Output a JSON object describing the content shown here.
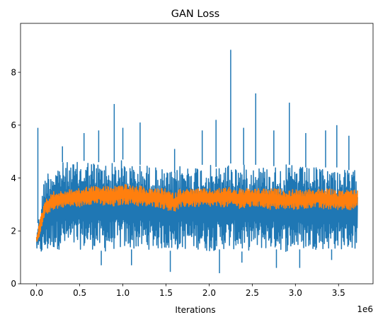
{
  "chart_data": {
    "type": "line",
    "title": "GAN Loss",
    "xlabel": "Iterations",
    "ylabel": "",
    "x_offset_label": "1e6",
    "xlim": [
      -0.186,
      3.9
    ],
    "ylim": [
      0,
      9.85
    ],
    "xticks": [
      0.0,
      0.5,
      1.0,
      1.5,
      2.0,
      2.5,
      3.0,
      3.5
    ],
    "xtick_labels": [
      "0.0",
      "0.5",
      "1.0",
      "1.5",
      "2.0",
      "2.5",
      "3.0",
      "3.5"
    ],
    "yticks": [
      0,
      2,
      4,
      6,
      8
    ],
    "ytick_labels": [
      "0",
      "2",
      "4",
      "6",
      "8"
    ],
    "grid": false,
    "legend": "none",
    "x_unit_multiplier": 1000000,
    "series": [
      {
        "color": "#1f77b4",
        "x": [
          0.0,
          0.015,
          0.03,
          0.05,
          0.07,
          0.1,
          0.15,
          0.2,
          0.3,
          0.4,
          0.5,
          0.6,
          0.7,
          0.8,
          0.9,
          1.0,
          1.1,
          1.2,
          1.3,
          1.4,
          1.5,
          1.6,
          1.65,
          1.7,
          1.8,
          1.9,
          2.0,
          2.1,
          2.2,
          2.3,
          2.4,
          2.5,
          2.6,
          2.7,
          2.8,
          2.9,
          3.0,
          3.1,
          3.2,
          3.3,
          3.4,
          3.5,
          3.6,
          3.72
        ],
        "upper": [
          1.9,
          2.3,
          2.6,
          3.0,
          3.6,
          4.2,
          4.4,
          4.5,
          4.6,
          4.6,
          4.6,
          4.7,
          4.6,
          4.6,
          4.6,
          4.7,
          4.5,
          4.5,
          4.5,
          4.4,
          4.3,
          4.2,
          4.5,
          4.5,
          4.5,
          4.5,
          4.5,
          4.4,
          4.6,
          4.5,
          4.5,
          4.5,
          4.5,
          4.4,
          4.5,
          4.5,
          4.5,
          4.4,
          4.4,
          4.4,
          4.4,
          4.4,
          4.3,
          4.3
        ],
        "lower": [
          1.3,
          1.2,
          1.2,
          1.1,
          1.1,
          1.1,
          1.2,
          1.3,
          1.3,
          1.3,
          1.3,
          1.3,
          1.3,
          1.2,
          1.3,
          1.3,
          1.3,
          1.3,
          1.3,
          1.3,
          1.3,
          1.2,
          1.3,
          1.3,
          1.3,
          1.3,
          1.2,
          1.3,
          1.3,
          1.3,
          1.2,
          1.3,
          1.3,
          1.3,
          1.3,
          1.2,
          1.3,
          1.3,
          1.3,
          1.3,
          1.3,
          1.3,
          1.3,
          1.3
        ],
        "spikes": [
          [
            0.015,
            5.9
          ],
          [
            0.3,
            5.2
          ],
          [
            0.55,
            5.7
          ],
          [
            0.72,
            5.8
          ],
          [
            0.9,
            6.8
          ],
          [
            1.0,
            5.9
          ],
          [
            1.2,
            6.1
          ],
          [
            1.6,
            5.1
          ],
          [
            1.92,
            5.8
          ],
          [
            2.08,
            6.2
          ],
          [
            2.25,
            8.85
          ],
          [
            2.4,
            5.9
          ],
          [
            2.54,
            7.2
          ],
          [
            2.75,
            5.8
          ],
          [
            2.93,
            6.85
          ],
          [
            3.12,
            5.7
          ],
          [
            3.35,
            5.8
          ],
          [
            3.48,
            6.0
          ],
          [
            3.62,
            5.6
          ],
          [
            0.75,
            0.7
          ],
          [
            1.1,
            0.7
          ],
          [
            1.55,
            0.45
          ],
          [
            2.12,
            0.4
          ],
          [
            2.38,
            0.8
          ],
          [
            2.78,
            0.6
          ],
          [
            3.05,
            0.6
          ],
          [
            3.42,
            0.9
          ]
        ]
      },
      {
        "color": "#ff7f0e",
        "x": [
          0.0,
          0.02,
          0.05,
          0.1,
          0.2,
          0.3,
          0.4,
          0.5,
          0.6,
          0.7,
          0.8,
          0.9,
          1.0,
          1.1,
          1.2,
          1.3,
          1.4,
          1.5,
          1.6,
          1.65,
          1.7,
          1.8,
          1.9,
          2.0,
          2.1,
          2.2,
          2.3,
          2.4,
          2.5,
          2.6,
          2.7,
          2.8,
          2.9,
          3.0,
          3.1,
          3.2,
          3.3,
          3.4,
          3.5,
          3.6,
          3.72
        ],
        "upper": [
          1.9,
          2.1,
          2.6,
          3.2,
          3.5,
          3.5,
          3.6,
          3.6,
          3.7,
          3.7,
          3.7,
          3.7,
          3.8,
          3.7,
          3.7,
          3.6,
          3.6,
          3.6,
          3.4,
          3.6,
          3.6,
          3.6,
          3.6,
          3.6,
          3.6,
          3.7,
          3.6,
          3.6,
          3.6,
          3.6,
          3.6,
          3.6,
          3.5,
          3.6,
          3.5,
          3.6,
          3.6,
          3.6,
          3.5,
          3.6,
          3.6
        ],
        "lower": [
          1.5,
          1.6,
          1.9,
          2.6,
          2.8,
          2.9,
          2.9,
          2.9,
          3.0,
          3.0,
          2.9,
          2.9,
          3.0,
          3.0,
          2.9,
          2.9,
          2.9,
          2.8,
          2.7,
          2.8,
          2.9,
          2.9,
          2.9,
          2.9,
          2.9,
          2.9,
          2.9,
          2.8,
          2.9,
          2.9,
          2.8,
          2.8,
          2.8,
          2.8,
          2.8,
          2.9,
          2.8,
          2.8,
          2.8,
          2.8,
          2.8
        ]
      }
    ]
  }
}
